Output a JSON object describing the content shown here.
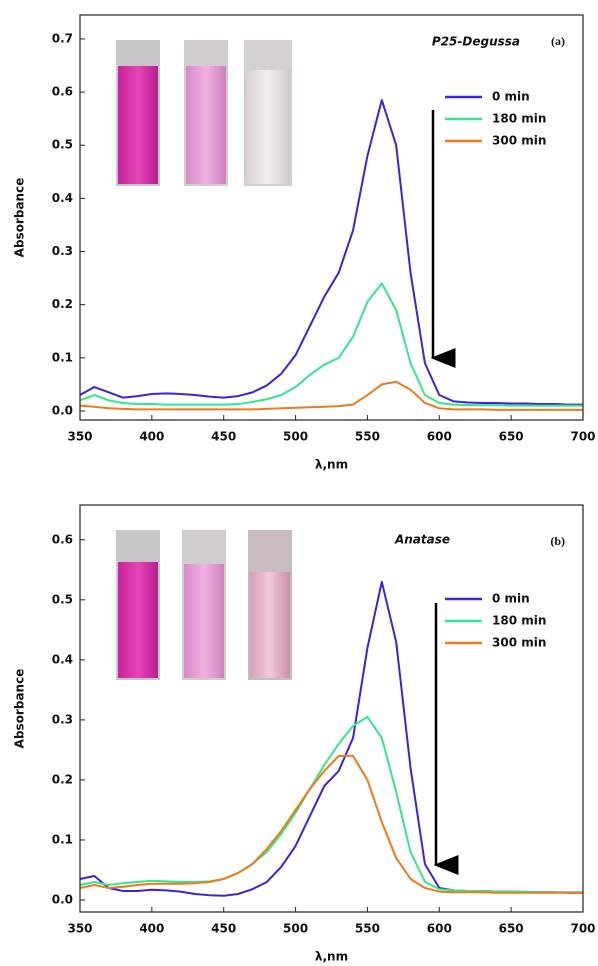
{
  "chart_data": [
    {
      "type": "line",
      "panel_label": "(a)",
      "title": "P25-Degussa",
      "xlabel": "λ,nm",
      "ylabel": "Absorbance",
      "x": [
        350,
        360,
        370,
        380,
        390,
        400,
        410,
        420,
        430,
        440,
        450,
        460,
        470,
        480,
        490,
        500,
        510,
        520,
        530,
        540,
        550,
        560,
        570,
        580,
        590,
        600,
        610,
        620,
        630,
        640,
        650,
        660,
        670,
        680,
        690,
        700
      ],
      "xlim": [
        350,
        700
      ],
      "xticks": [
        350,
        400,
        450,
        500,
        550,
        600,
        650,
        700
      ],
      "ylim": [
        -0.017,
        0.745
      ],
      "yticks": [
        {
          "value": 0,
          "label": "0.0"
        },
        0.1,
        0.2,
        0.3,
        0.4,
        0.5,
        0.6,
        0.7
      ],
      "legend": "upper right",
      "series": [
        {
          "name": "0 min",
          "color": "#3a22e0",
          "values": [
            0.03,
            0.045,
            0.035,
            0.025,
            0.028,
            0.032,
            0.033,
            0.032,
            0.03,
            0.027,
            0.025,
            0.028,
            0.035,
            0.048,
            0.07,
            0.105,
            0.16,
            0.215,
            0.26,
            0.34,
            0.48,
            0.585,
            0.5,
            0.26,
            0.09,
            0.03,
            0.018,
            0.016,
            0.015,
            0.015,
            0.014,
            0.014,
            0.013,
            0.013,
            0.012,
            0.012
          ]
        },
        {
          "name": "180 min",
          "color": "#33e88a",
          "values": [
            0.02,
            0.03,
            0.02,
            0.015,
            0.013,
            0.013,
            0.012,
            0.012,
            0.012,
            0.012,
            0.012,
            0.013,
            0.017,
            0.022,
            0.03,
            0.045,
            0.068,
            0.087,
            0.1,
            0.14,
            0.205,
            0.24,
            0.19,
            0.09,
            0.03,
            0.015,
            0.012,
            0.011,
            0.011,
            0.011,
            0.01,
            0.01,
            0.01,
            0.01,
            0.01,
            0.01
          ]
        },
        {
          "name": "300 min",
          "color": "#f07a1a",
          "values": [
            0.01,
            0.008,
            0.005,
            0.004,
            0.003,
            0.003,
            0.003,
            0.003,
            0.003,
            0.003,
            0.003,
            0.003,
            0.003,
            0.004,
            0.005,
            0.006,
            0.007,
            0.008,
            0.009,
            0.012,
            0.03,
            0.05,
            0.055,
            0.04,
            0.015,
            0.005,
            0.003,
            0.003,
            0.003,
            0.002,
            0.002,
            0.002,
            0.002,
            0.002,
            0.002,
            0.002
          ]
        }
      ]
    },
    {
      "type": "line",
      "panel_label": "(b)",
      "title": "Anatase",
      "xlabel": "λ,nm",
      "ylabel": "Absorbance",
      "x": [
        350,
        360,
        370,
        380,
        390,
        400,
        410,
        420,
        430,
        440,
        450,
        460,
        470,
        480,
        490,
        500,
        510,
        520,
        530,
        540,
        550,
        560,
        570,
        580,
        590,
        600,
        610,
        620,
        630,
        640,
        650,
        660,
        670,
        680,
        690,
        700
      ],
      "xlim": [
        350,
        700
      ],
      "xticks": [
        350,
        400,
        450,
        500,
        550,
        600,
        650,
        700
      ],
      "ylim": [
        -0.02,
        0.658
      ],
      "yticks": [
        {
          "value": 0,
          "label": "0.0"
        },
        0.1,
        0.2,
        0.3,
        0.4,
        0.5,
        0.6
      ],
      "legend": "upper right",
      "series": [
        {
          "name": "0 min",
          "color": "#3a22e0",
          "values": [
            0.035,
            0.04,
            0.02,
            0.015,
            0.015,
            0.017,
            0.016,
            0.014,
            0.01,
            0.008,
            0.007,
            0.01,
            0.018,
            0.03,
            0.055,
            0.09,
            0.14,
            0.19,
            0.215,
            0.27,
            0.42,
            0.53,
            0.43,
            0.22,
            0.06,
            0.02,
            0.016,
            0.015,
            0.015,
            0.014,
            0.014,
            0.013,
            0.013,
            0.013,
            0.012,
            0.012
          ]
        },
        {
          "name": "180 min",
          "color": "#33e88a",
          "values": [
            0.025,
            0.03,
            0.025,
            0.028,
            0.03,
            0.032,
            0.031,
            0.03,
            0.03,
            0.031,
            0.035,
            0.045,
            0.06,
            0.08,
            0.11,
            0.145,
            0.185,
            0.225,
            0.26,
            0.29,
            0.305,
            0.27,
            0.18,
            0.08,
            0.03,
            0.018,
            0.016,
            0.015,
            0.015,
            0.014,
            0.014,
            0.014,
            0.013,
            0.013,
            0.013,
            0.013
          ]
        },
        {
          "name": "300 min",
          "color": "#f07a1a",
          "values": [
            0.02,
            0.025,
            0.02,
            0.022,
            0.025,
            0.027,
            0.027,
            0.027,
            0.028,
            0.03,
            0.035,
            0.045,
            0.06,
            0.085,
            0.115,
            0.15,
            0.185,
            0.215,
            0.24,
            0.24,
            0.2,
            0.13,
            0.07,
            0.035,
            0.02,
            0.014,
            0.013,
            0.013,
            0.013,
            0.012,
            0.012,
            0.012,
            0.012,
            0.012,
            0.012,
            0.012
          ]
        }
      ]
    }
  ]
}
